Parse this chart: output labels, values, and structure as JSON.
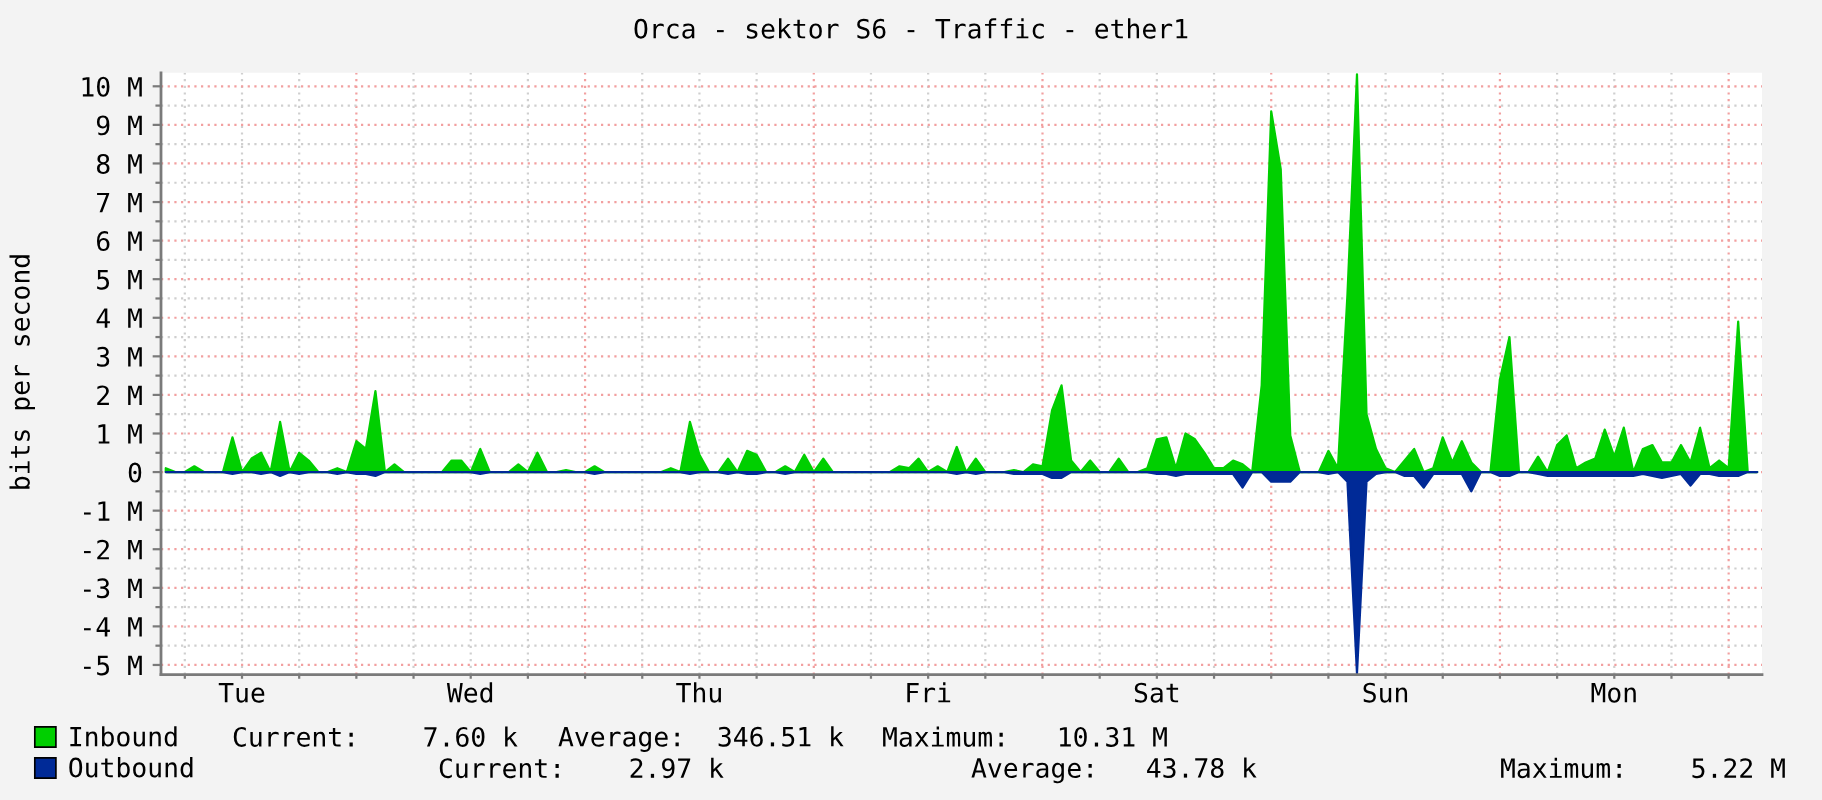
{
  "chart_data": {
    "type": "area",
    "title": "Orca - sektor S6 - Traffic - ether1",
    "ylabel": "bits per second",
    "categories": [
      null,
      null,
      null,
      null,
      null,
      null,
      null,
      null,
      "Tue",
      null,
      null,
      null,
      null,
      null,
      null,
      null,
      null,
      null,
      null,
      null,
      null,
      null,
      null,
      null,
      null,
      null,
      null,
      null,
      null,
      null,
      null,
      null,
      "Wed",
      null,
      null,
      null,
      null,
      null,
      null,
      null,
      null,
      null,
      null,
      null,
      null,
      null,
      null,
      null,
      null,
      null,
      null,
      null,
      null,
      null,
      null,
      null,
      "Thu",
      null,
      null,
      null,
      null,
      null,
      null,
      null,
      null,
      null,
      null,
      null,
      null,
      null,
      null,
      null,
      null,
      null,
      null,
      null,
      null,
      null,
      null,
      null,
      "Fri",
      null,
      null,
      null,
      null,
      null,
      null,
      null,
      null,
      null,
      null,
      null,
      null,
      null,
      null,
      null,
      null,
      null,
      null,
      null,
      null,
      null,
      null,
      null,
      "Sat",
      null,
      null,
      null,
      null,
      null,
      null,
      null,
      null,
      null,
      null,
      null,
      null,
      null,
      null,
      null,
      null,
      null,
      null,
      null,
      null,
      null,
      null,
      null,
      "Sun",
      null,
      null,
      null,
      null,
      null,
      null,
      null,
      null,
      null,
      null,
      null,
      null,
      null,
      null,
      null,
      null,
      null,
      null,
      null,
      null,
      null,
      null,
      null,
      "Mon",
      null,
      null,
      null,
      null,
      null,
      null,
      null,
      null,
      null,
      null,
      null,
      null,
      null,
      null,
      null
    ],
    "ylim": [
      -5.25,
      10.35
    ],
    "yticks": [
      {
        "value": -5,
        "label": "-5 M"
      },
      {
        "value": -4.5,
        "label": null
      },
      {
        "value": -4,
        "label": "-4 M"
      },
      {
        "value": -3.5,
        "label": null
      },
      {
        "value": -3,
        "label": "-3 M"
      },
      {
        "value": -2.5,
        "label": null
      },
      {
        "value": -2,
        "label": "-2 M"
      },
      {
        "value": -1.5,
        "label": null
      },
      {
        "value": -1,
        "label": "-1 M"
      },
      {
        "value": -0.5,
        "label": null
      },
      0,
      {
        "value": 0.5,
        "label": null
      },
      {
        "value": 1,
        "label": "1 M"
      },
      {
        "value": 1.5,
        "label": null
      },
      {
        "value": 2,
        "label": "2 M"
      },
      {
        "value": 2.5,
        "label": null
      },
      {
        "value": 3,
        "label": "3 M"
      },
      {
        "value": 3.5,
        "label": null
      },
      {
        "value": 4,
        "label": "4 M"
      },
      {
        "value": 4.5,
        "label": null
      },
      {
        "value": 5,
        "label": "5 M"
      },
      {
        "value": 5.5,
        "label": null
      },
      {
        "value": 6,
        "label": "6 M"
      },
      {
        "value": 6.5,
        "label": null
      },
      {
        "value": 7,
        "label": "7 M"
      },
      {
        "value": 7.5,
        "label": null
      },
      {
        "value": 8,
        "label": "8 M"
      },
      {
        "value": 8.5,
        "label": null
      },
      {
        "value": 9,
        "label": "9 M"
      },
      {
        "value": 9.5,
        "label": null
      },
      {
        "value": 10,
        "label": "10 M"
      }
    ],
    "grid": true,
    "legend": "bottom left",
    "series": [
      {
        "name": "Inbound",
        "color": "#00cf00",
        "values": [
          0.1,
          0,
          0,
          0.15,
          0,
          0,
          0,
          0.9,
          0,
          0.35,
          0.5,
          0,
          1.3,
          0,
          0.5,
          0.3,
          0,
          0,
          0.1,
          0,
          0.8,
          0.6,
          2.1,
          0,
          0.2,
          0,
          0,
          0,
          0,
          0,
          0.3,
          0.3,
          0,
          0.6,
          0,
          0,
          0,
          0.2,
          0,
          0.5,
          0,
          0,
          0.05,
          0,
          0,
          0.15,
          0,
          0,
          0,
          0,
          0,
          0,
          0,
          0.1,
          0,
          1.3,
          0.45,
          0,
          0,
          0.35,
          0,
          0.55,
          0.45,
          0,
          0,
          0.15,
          0,
          0.45,
          0,
          0.35,
          0,
          0,
          0,
          0,
          0,
          0,
          0,
          0.15,
          0.1,
          0.35,
          0,
          0.15,
          0,
          0.65,
          0,
          0.35,
          0,
          0,
          0,
          0.05,
          0,
          0.2,
          0.15,
          1.6,
          2.25,
          0.3,
          0,
          0.3,
          0,
          0,
          0.35,
          0,
          0,
          0.1,
          0.85,
          0.9,
          0.1,
          1.0,
          0.85,
          0.5,
          0.1,
          0.1,
          0.3,
          0.2,
          0,
          2.25,
          9.35,
          7.85,
          0.95,
          0,
          0,
          0,
          0.55,
          0.1,
          4.6,
          10.31,
          1.5,
          0.6,
          0.1,
          0,
          0.3,
          0.6,
          0,
          0.1,
          0.9,
          0.25,
          0.8,
          0.25,
          0,
          0,
          2.4,
          3.5,
          0,
          0,
          0.4,
          0,
          0.7,
          0.95,
          0.1,
          0.25,
          0.35,
          1.1,
          0.4,
          1.15,
          0,
          0.6,
          0.7,
          0.25,
          0.25,
          0.7,
          0.25,
          1.15,
          0.1,
          0.3,
          0.1,
          3.9,
          0,
          0
        ]
      },
      {
        "name": "Outbound",
        "color": "#002a97",
        "values": [
          0,
          0,
          0,
          0,
          0,
          0,
          0,
          -0.05,
          0,
          0,
          -0.05,
          0,
          -0.1,
          0,
          -0.05,
          0,
          0,
          0,
          -0.05,
          0,
          -0.05,
          -0.05,
          -0.1,
          0,
          0,
          0,
          0,
          0,
          0,
          0,
          0,
          0,
          0,
          -0.05,
          0,
          0,
          0,
          0,
          0,
          0,
          0,
          0,
          0,
          0,
          0,
          -0.05,
          0,
          0,
          0,
          0,
          0,
          0,
          0,
          0,
          0,
          -0.05,
          0,
          0,
          0,
          -0.05,
          0,
          -0.05,
          -0.05,
          0,
          0,
          -0.05,
          0,
          0,
          0,
          0,
          0,
          0,
          0,
          0,
          0,
          0,
          0,
          0,
          0,
          0,
          0,
          0,
          0,
          -0.05,
          0,
          -0.05,
          0,
          0,
          0,
          -0.05,
          -0.05,
          -0.05,
          -0.05,
          -0.15,
          -0.15,
          0,
          0,
          0,
          0,
          0,
          0,
          0,
          0,
          0,
          -0.05,
          -0.05,
          -0.1,
          -0.05,
          -0.05,
          -0.05,
          -0.05,
          -0.05,
          -0.05,
          -0.4,
          0,
          0,
          -0.25,
          -0.25,
          -0.25,
          0,
          0,
          0,
          -0.05,
          0,
          -0.25,
          -5.22,
          -0.25,
          -0.05,
          0,
          0,
          -0.1,
          -0.1,
          -0.4,
          -0.05,
          -0.05,
          -0.05,
          -0.05,
          -0.5,
          0,
          0,
          -0.1,
          -0.1,
          0,
          0,
          -0.05,
          -0.1,
          -0.1,
          -0.1,
          -0.1,
          -0.1,
          -0.1,
          -0.1,
          -0.1,
          -0.1,
          -0.1,
          -0.05,
          -0.1,
          -0.15,
          -0.1,
          -0.05,
          -0.35,
          -0.05,
          -0.05,
          -0.1,
          -0.1,
          -0.1,
          0,
          0
        ]
      }
    ],
    "annotations": [
      "Current:    7.60 k",
      "Average:  346.51 k",
      "Maximum:   10.31 M",
      "Current:    2.97 k",
      "Average:   43.78 k",
      "Maximum:    5.22 M"
    ]
  }
}
